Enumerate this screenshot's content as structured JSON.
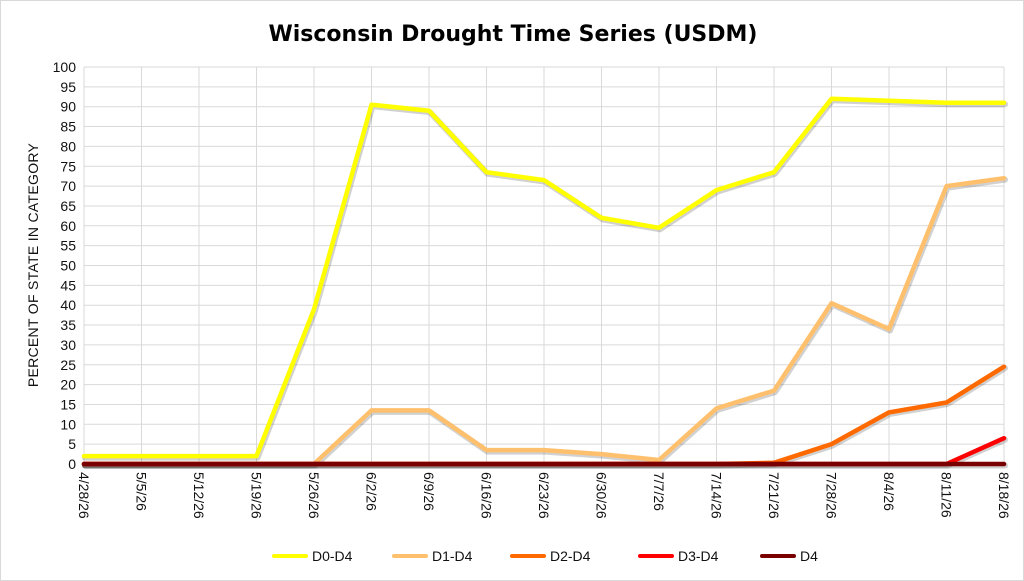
{
  "chart_data": {
    "type": "line",
    "title": "Wisconsin Drought Time Series (USDM)",
    "xlabel": "",
    "ylabel": "PERCENT OF STATE IN CATEGORY",
    "ylim": [
      0,
      100
    ],
    "yticks": [
      0,
      5,
      10,
      15,
      20,
      25,
      30,
      35,
      40,
      45,
      50,
      55,
      60,
      65,
      70,
      75,
      80,
      85,
      90,
      95,
      100
    ],
    "grid": true,
    "legend_position": "bottom",
    "categories": [
      "4/28/26",
      "5/5/26",
      "5/12/26",
      "5/19/26",
      "5/26/26",
      "6/2/26",
      "6/9/26",
      "6/16/26",
      "6/23/26",
      "6/30/26",
      "7/7/26",
      "7/14/26",
      "7/21/26",
      "7/28/26",
      "8/4/26",
      "8/11/26",
      "8/18/26"
    ],
    "series": [
      {
        "name": "D0-D4",
        "color": "#ffff00",
        "values": [
          2,
          2,
          2,
          2,
          39,
          90.5,
          89,
          73.5,
          71.5,
          62,
          59.5,
          69,
          73.5,
          92,
          91.5,
          91,
          91
        ]
      },
      {
        "name": "D1-D4",
        "color": "#ffc06e",
        "values": [
          0,
          0,
          0,
          0,
          0,
          13.5,
          13.5,
          3.5,
          3.5,
          2.5,
          1,
          14,
          18.5,
          40.5,
          34,
          70,
          72
        ]
      },
      {
        "name": "D2-D4",
        "color": "#ff6a00",
        "values": [
          0,
          0,
          0,
          0,
          0,
          0,
          0,
          0,
          0,
          0,
          0,
          0,
          0.3,
          5,
          13,
          15.5,
          24.5
        ]
      },
      {
        "name": "D3-D4",
        "color": "#ff0000",
        "values": [
          0,
          0,
          0,
          0,
          0,
          0,
          0,
          0,
          0,
          0,
          0,
          0,
          0,
          0,
          0,
          0,
          6.5
        ]
      },
      {
        "name": "D4",
        "color": "#7a0000",
        "values": [
          0,
          0,
          0,
          0,
          0,
          0,
          0,
          0,
          0,
          0,
          0,
          0,
          0,
          0,
          0,
          0,
          0
        ]
      }
    ]
  }
}
